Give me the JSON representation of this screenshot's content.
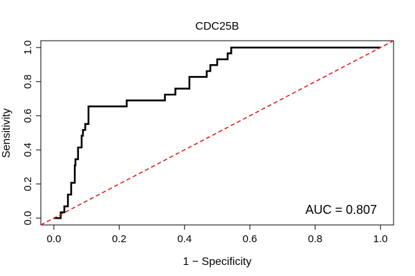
{
  "chart_data": {
    "type": "line",
    "title": "CDC25B",
    "xlabel": "1 − Specificity",
    "ylabel": "Sensitivity",
    "xlim": [
      -0.04,
      1.04
    ],
    "ylim": [
      -0.04,
      1.04
    ],
    "x_ticks": [
      0.0,
      0.2,
      0.4,
      0.6,
      0.8,
      1.0
    ],
    "x_tick_labels": [
      "0.0",
      "0.2",
      "0.4",
      "0.6",
      "0.8",
      "1.0"
    ],
    "y_ticks": [
      0.0,
      0.2,
      0.4,
      0.6,
      0.8,
      1.0
    ],
    "y_tick_labels": [
      "0.0",
      "0.2",
      "0.4",
      "0.6",
      "0.8",
      "1.0"
    ],
    "annotation": "AUC = 0.807",
    "legend": "none",
    "grid": false,
    "series": [
      {
        "name": "ROC curve",
        "color": "#000000",
        "style": "solid",
        "x": [
          0.0,
          0.021,
          0.021,
          0.032,
          0.032,
          0.043,
          0.043,
          0.053,
          0.053,
          0.064,
          0.064,
          0.066,
          0.066,
          0.068,
          0.068,
          0.074,
          0.074,
          0.085,
          0.085,
          0.089,
          0.089,
          0.096,
          0.096,
          0.1,
          0.1,
          0.106,
          0.106,
          0.223,
          0.223,
          0.34,
          0.34,
          0.372,
          0.372,
          0.415,
          0.415,
          0.468,
          0.468,
          0.479,
          0.479,
          0.5,
          0.5,
          0.532,
          0.532,
          0.543,
          0.543,
          1.0
        ],
        "y": [
          0.0,
          0.0,
          0.034,
          0.034,
          0.069,
          0.069,
          0.138,
          0.138,
          0.207,
          0.207,
          0.31,
          0.31,
          0.345,
          0.345,
          0.345,
          0.345,
          0.414,
          0.414,
          0.483,
          0.483,
          0.517,
          0.517,
          0.552,
          0.552,
          0.552,
          0.552,
          0.655,
          0.655,
          0.69,
          0.69,
          0.724,
          0.724,
          0.759,
          0.759,
          0.828,
          0.828,
          0.862,
          0.862,
          0.897,
          0.897,
          0.931,
          0.931,
          0.966,
          0.966,
          1.0,
          1.0
        ]
      },
      {
        "name": "Reference diagonal",
        "color": "#e0201b",
        "style": "dashed",
        "x": [
          0.0,
          1.0
        ],
        "y": [
          0.0,
          1.0
        ]
      }
    ]
  }
}
